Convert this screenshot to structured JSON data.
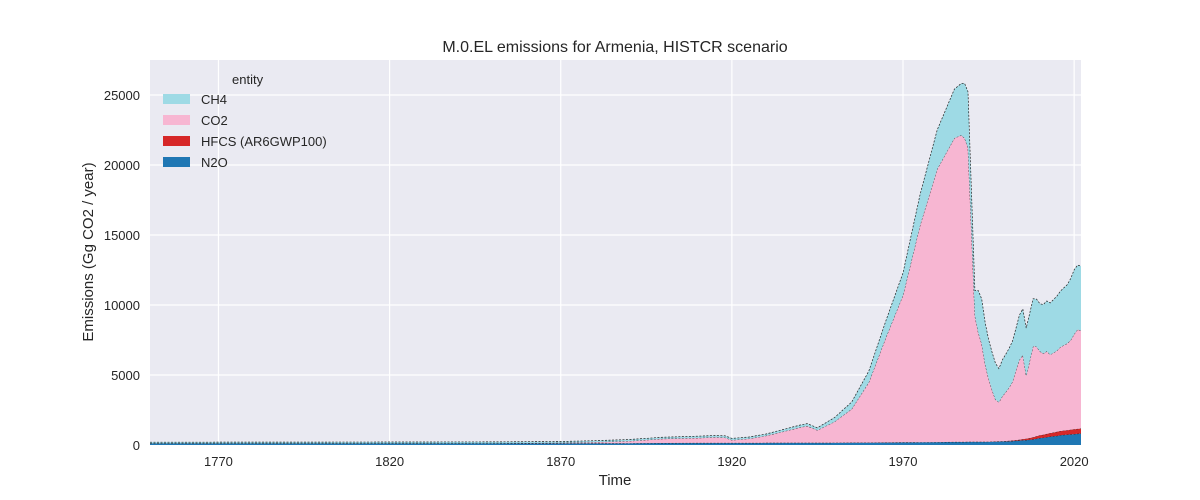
{
  "chart_data": {
    "type": "area",
    "title": "M.0.EL emissions for Armenia, HISTCR scenario",
    "xlabel": "Time",
    "ylabel": "Emissions (Gg CO2 / year)",
    "xlim": [
      1750,
      2022
    ],
    "ylim": [
      0,
      27500
    ],
    "x_ticks": [
      1770,
      1820,
      1870,
      1920,
      1970,
      2020
    ],
    "y_ticks": [
      0,
      5000,
      10000,
      15000,
      20000,
      25000
    ],
    "grid": true,
    "stacked": true,
    "legend": {
      "title": "entity",
      "placement": "top-left"
    },
    "x": [
      1750,
      1800,
      1850,
      1870,
      1880,
      1890,
      1900,
      1910,
      1915,
      1918,
      1920,
      1925,
      1930,
      1935,
      1940,
      1942,
      1944,
      1945,
      1950,
      1955,
      1960,
      1965,
      1970,
      1975,
      1980,
      1985,
      1987,
      1988,
      1989,
      1990,
      1991,
      1992,
      1993,
      1994,
      1995,
      1996,
      1997,
      1998,
      1999,
      2000,
      2001,
      2002,
      2003,
      2004,
      2005,
      2006,
      2007,
      2008,
      2009,
      2010,
      2011,
      2012,
      2013,
      2014,
      2015,
      2016,
      2017,
      2018,
      2019,
      2020,
      2021,
      2022
    ],
    "series": [
      {
        "name": "N2O",
        "color": "#1f77b4",
        "values": [
          120,
          120,
          120,
          125,
          125,
          130,
          140,
          150,
          150,
          150,
          150,
          150,
          155,
          160,
          160,
          160,
          160,
          160,
          165,
          170,
          175,
          180,
          190,
          200,
          210,
          220,
          220,
          225,
          230,
          230,
          230,
          230,
          230,
          230,
          235,
          240,
          245,
          250,
          255,
          260,
          270,
          280,
          300,
          320,
          340,
          350,
          380,
          400,
          450,
          500,
          520,
          560,
          600,
          620,
          650,
          700,
          720,
          740,
          760,
          780,
          800,
          820
        ]
      },
      {
        "name": "HFCS (AR6GWP100)",
        "color": "#d62728",
        "values": [
          0,
          0,
          0,
          0,
          0,
          0,
          0,
          0,
          0,
          0,
          0,
          0,
          0,
          0,
          0,
          0,
          0,
          0,
          0,
          0,
          0,
          0,
          0,
          0,
          0,
          0,
          0,
          0,
          0,
          0,
          0,
          0,
          0,
          0,
          0,
          0,
          5,
          10,
          15,
          20,
          30,
          40,
          50,
          60,
          80,
          100,
          120,
          150,
          170,
          190,
          210,
          230,
          250,
          270,
          290,
          300,
          310,
          320,
          330,
          340,
          350,
          360
        ]
      },
      {
        "name": "CO2",
        "color": "#f7b6d2",
        "values": [
          0,
          0,
          10,
          30,
          80,
          150,
          300,
          350,
          400,
          380,
          200,
          300,
          500,
          800,
          1100,
          1200,
          1000,
          900,
          1500,
          2400,
          4300,
          7500,
          10500,
          15500,
          19500,
          21700,
          21900,
          21700,
          21000,
          15000,
          9000,
          7800,
          7000,
          5500,
          4500,
          3700,
          3000,
          2800,
          3200,
          3500,
          3800,
          4200,
          5000,
          5700,
          6000,
          4500,
          5500,
          6500,
          6400,
          6000,
          5800,
          5900,
          5600,
          5700,
          5800,
          6000,
          6100,
          6200,
          6400,
          6800,
          7100,
          7000
        ]
      },
      {
        "name": "CH4",
        "color": "#9edae5",
        "values": [
          80,
          85,
          90,
          95,
          100,
          110,
          120,
          130,
          130,
          130,
          120,
          120,
          130,
          150,
          170,
          170,
          170,
          170,
          300,
          500,
          800,
          1200,
          1600,
          2200,
          2800,
          3500,
          3700,
          3900,
          4000,
          2800,
          1800,
          3000,
          3200,
          3000,
          2800,
          2700,
          2600,
          2400,
          2600,
          2700,
          2800,
          2900,
          3000,
          3200,
          3300,
          3400,
          3400,
          3400,
          3400,
          3400,
          3500,
          3600,
          3700,
          3800,
          3900,
          4000,
          4100,
          4200,
          4400,
          4600,
          4600,
          4600
        ]
      }
    ]
  }
}
